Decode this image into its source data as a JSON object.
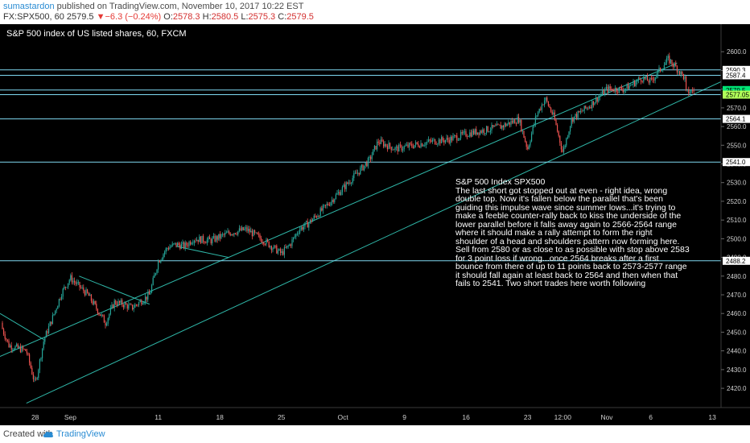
{
  "header": {
    "author": "sumastardon",
    "published": "published on TradingView.com, November 10, 2017 10:22 EST",
    "symbol": "FX:SPX500, 60",
    "last": "2579.5",
    "change": "−6.3 (−0.24%)",
    "open_label": "O:",
    "open": "2578.3",
    "high_label": "H:",
    "high": "2580.5",
    "low_label": "L:",
    "low": "2575.3",
    "close_label": "C:",
    "close": "2579.5"
  },
  "footer": {
    "created_with": "Created with",
    "brand": "TradingView"
  },
  "chart_data": {
    "type": "candlestick",
    "title": "S&P 500 index of US listed shares, 60, FXCM",
    "y_axis": {
      "range": [
        2414,
        2607
      ],
      "ticks": [
        2420,
        2430,
        2440,
        2450,
        2460,
        2470,
        2480,
        2490,
        2500,
        2510,
        2520,
        2530,
        2540,
        2550,
        2560,
        2570,
        2580,
        2590,
        2600
      ],
      "tick_labels": [
        "2420.0",
        "2430.0",
        "2440.0",
        "2450.0",
        "2460.0",
        "2470.0",
        "2480.0",
        "2490.0",
        "2500.0",
        "2510.0",
        "2520.0",
        "2530.0",
        "2540.0",
        "2550.0",
        "2560.0",
        "2570.0",
        "2580.0",
        "2590.0",
        "2600.0"
      ]
    },
    "x_axis": {
      "range": [
        "2017-08-24",
        "2017-11-14"
      ],
      "ticks": [
        {
          "date": "2017-08-28",
          "label": "28"
        },
        {
          "date": "2017-09-01",
          "label": "Sep"
        },
        {
          "date": "2017-09-11",
          "label": "11"
        },
        {
          "date": "2017-09-18",
          "label": "18"
        },
        {
          "date": "2017-09-25",
          "label": "25"
        },
        {
          "date": "2017-10-02",
          "label": "Oct"
        },
        {
          "date": "2017-10-09",
          "label": "9"
        },
        {
          "date": "2017-10-16",
          "label": "16"
        },
        {
          "date": "2017-10-23",
          "label": "23"
        },
        {
          "date": "2017-10-27",
          "label": "12:00"
        },
        {
          "date": "2017-11-01",
          "label": "Nov"
        },
        {
          "date": "2017-11-06",
          "label": "6"
        },
        {
          "date": "2017-11-13",
          "label": "13"
        }
      ]
    },
    "price_path": [
      [
        "2017-08-24",
        2455
      ],
      [
        "2017-08-25",
        2443
      ],
      [
        "2017-08-27",
        2440
      ],
      [
        "2017-08-28",
        2422
      ],
      [
        "2017-08-29",
        2446
      ],
      [
        "2017-08-30",
        2458
      ],
      [
        "2017-08-31",
        2471
      ],
      [
        "2017-09-01",
        2479
      ],
      [
        "2017-09-03",
        2470
      ],
      [
        "2017-09-05",
        2455
      ],
      [
        "2017-09-06",
        2466
      ],
      [
        "2017-09-07",
        2465
      ],
      [
        "2017-09-08",
        2463
      ],
      [
        "2017-09-10",
        2470
      ],
      [
        "2017-09-11",
        2488
      ],
      [
        "2017-09-12",
        2495
      ],
      [
        "2017-09-13",
        2497
      ],
      [
        "2017-09-14",
        2496
      ],
      [
        "2017-09-15",
        2500
      ],
      [
        "2017-09-17",
        2499
      ],
      [
        "2017-09-19",
        2503
      ],
      [
        "2017-09-21",
        2505
      ],
      [
        "2017-09-23",
        2499
      ],
      [
        "2017-09-25",
        2492
      ],
      [
        "2017-09-26",
        2497
      ],
      [
        "2017-09-27",
        2505
      ],
      [
        "2017-09-28",
        2508
      ],
      [
        "2017-09-30",
        2517
      ],
      [
        "2017-10-02",
        2527
      ],
      [
        "2017-10-04",
        2537
      ],
      [
        "2017-10-05",
        2542
      ],
      [
        "2017-10-06",
        2552
      ],
      [
        "2017-10-08",
        2548
      ],
      [
        "2017-10-10",
        2550
      ],
      [
        "2017-10-12",
        2552
      ],
      [
        "2017-10-14",
        2553
      ],
      [
        "2017-10-16",
        2556
      ],
      [
        "2017-10-18",
        2558
      ],
      [
        "2017-10-20",
        2560
      ],
      [
        "2017-10-22",
        2564
      ],
      [
        "2017-10-23",
        2548
      ],
      [
        "2017-10-24",
        2566
      ],
      [
        "2017-10-25",
        2575
      ],
      [
        "2017-10-26",
        2565
      ],
      [
        "2017-10-27",
        2546
      ],
      [
        "2017-10-28",
        2564
      ],
      [
        "2017-10-30",
        2571
      ],
      [
        "2017-11-01",
        2580
      ],
      [
        "2017-11-03",
        2580
      ],
      [
        "2017-11-05",
        2586
      ],
      [
        "2017-11-06",
        2584
      ],
      [
        "2017-11-07",
        2590
      ],
      [
        "2017-11-08",
        2596
      ],
      [
        "2017-11-09",
        2591
      ],
      [
        "2017-11-10",
        2585
      ],
      [
        "2017-11-10",
        2578
      ],
      [
        "2017-11-11",
        2579.5
      ]
    ],
    "trendlines": [
      {
        "name": "upper-channel",
        "from": [
          "2017-08-24",
          2437
        ],
        "to": [
          "2017-11-09",
          2594
        ]
      },
      {
        "name": "lower-channel",
        "from": [
          "2017-08-27",
          2412
        ],
        "to": [
          "2017-11-14",
          2584
        ]
      },
      {
        "name": "august-downtrend",
        "from": [
          "2017-08-24",
          2460
        ],
        "to": [
          "2017-08-29",
          2446
        ]
      },
      {
        "name": "sept-pullback-line",
        "from": [
          "2017-09-02",
          2480
        ],
        "to": [
          "2017-09-10",
          2465
        ]
      },
      {
        "name": "consolidation-line",
        "from": [
          "2017-09-13",
          2496
        ],
        "to": [
          "2017-09-19",
          2490
        ]
      }
    ],
    "horizontal_levels": [
      {
        "value": 2590.3,
        "label": "2590.3",
        "bg": "#ffffff",
        "fg": "#000000"
      },
      {
        "value": 2587.4,
        "label": "2587.4",
        "bg": "#ffffff",
        "fg": "#000000"
      },
      {
        "value": 2579.5,
        "label": "2579.5",
        "bg": "#00e676",
        "fg": "#000000"
      },
      {
        "value": 2577.05,
        "label": "2577.05",
        "bg": "#b2ff59",
        "fg": "#000000"
      },
      {
        "value": 2564.1,
        "label": "2564.1",
        "bg": "#ffffff",
        "fg": "#000000"
      },
      {
        "value": 2541.0,
        "label": "2541.0",
        "bg": "#ffffff",
        "fg": "#000000"
      },
      {
        "value": 2488.2,
        "label": "2488.2",
        "bg": "#ffffff",
        "fg": "#000000"
      }
    ],
    "annotation": {
      "title": "S&P 500 Index  SPX500",
      "lines": [
        "The last short got stopped out at even  - right idea, wrong",
        "double top. Now it's fallen below the parallel that's been",
        "guiding this impulse wave since summer lows...it's trying to",
        "make a feeble counter-rally back to kiss the underside of the",
        "lower parallel before it falls away again to 2566-2564 range",
        "where it should make a rally attempt to form the right",
        "shoulder of a head and shoulders pattern now forming here.",
        "Sell from 2580 or as close to as possible with stop above 2583",
        "for 3 point loss if wrong...once 2564 breaks after a first",
        "bounce from there of up to 11 points back to 2573-2577 range",
        "it should fall again at least back to 2564 and then when that",
        "fails to 2541. Two short trades here worth following"
      ]
    },
    "colors": {
      "background": "#000000",
      "up_candle": "#26a69a",
      "down_candle": "#ef5350",
      "trendline": "#2fb7a8",
      "level_line": "#7fd8f0",
      "text": "#ffffff"
    },
    "grid": false
  }
}
